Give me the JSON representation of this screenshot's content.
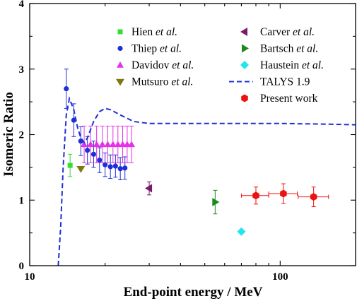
{
  "chart_data": {
    "type": "scatter",
    "title": "",
    "xlabel": "End-point energy / MeV",
    "ylabel": "Isomeric Ratio",
    "x_scale": "log",
    "xlim": [
      10,
      200
    ],
    "ylim": [
      0,
      4
    ],
    "x_ticks": [
      {
        "value": 10,
        "label": "10"
      },
      {
        "value": 100,
        "label": "100"
      }
    ],
    "y_ticks": [
      {
        "value": 0,
        "label": "0"
      },
      {
        "value": 1,
        "label": "1"
      },
      {
        "value": 2,
        "label": "2"
      },
      {
        "value": 3,
        "label": "3"
      },
      {
        "value": 4,
        "label": "4"
      }
    ],
    "grid": false,
    "legend_position": "top-right",
    "series": [
      {
        "name": "Hien",
        "name_suffix": " et al.",
        "marker": "square",
        "color": "#33dd33",
        "points": [
          {
            "x": 14.5,
            "y": 1.53,
            "yerr": 0.17
          }
        ]
      },
      {
        "name": "Thiep",
        "name_suffix": " et al.",
        "marker": "circle",
        "color": "#1f2fd6",
        "points": [
          {
            "x": 14.0,
            "y": 2.7,
            "yerr": 0.3
          },
          {
            "x": 15.0,
            "y": 2.22,
            "yerr": 0.25
          },
          {
            "x": 16.0,
            "y": 1.9,
            "yerr": 0.22
          },
          {
            "x": 17.0,
            "y": 1.76,
            "yerr": 0.21
          },
          {
            "x": 18.0,
            "y": 1.7,
            "yerr": 0.2
          },
          {
            "x": 19.0,
            "y": 1.61,
            "yerr": 0.19
          },
          {
            "x": 20.0,
            "y": 1.54,
            "yerr": 0.18
          },
          {
            "x": 21.0,
            "y": 1.51,
            "yerr": 0.18
          },
          {
            "x": 22.0,
            "y": 1.52,
            "yerr": 0.17
          },
          {
            "x": 23.0,
            "y": 1.48,
            "yerr": 0.17
          },
          {
            "x": 24.0,
            "y": 1.49,
            "yerr": 0.17
          }
        ]
      },
      {
        "name": "Davidov",
        "name_suffix": " et al.",
        "marker": "triangle-up",
        "color": "#e432e6",
        "points": [
          {
            "x": 16.5,
            "y": 1.85,
            "yerr": 0.28
          },
          {
            "x": 17.5,
            "y": 1.85,
            "yerr": 0.28
          },
          {
            "x": 18.5,
            "y": 1.85,
            "yerr": 0.28
          },
          {
            "x": 19.5,
            "y": 1.85,
            "yerr": 0.28
          },
          {
            "x": 20.5,
            "y": 1.85,
            "yerr": 0.28
          },
          {
            "x": 21.5,
            "y": 1.85,
            "yerr": 0.28
          },
          {
            "x": 22.5,
            "y": 1.85,
            "yerr": 0.28
          },
          {
            "x": 23.5,
            "y": 1.85,
            "yerr": 0.28
          },
          {
            "x": 24.5,
            "y": 1.85,
            "yerr": 0.28
          },
          {
            "x": 25.5,
            "y": 1.85,
            "yerr": 0.28
          }
        ]
      },
      {
        "name": "Mutsuro",
        "name_suffix": " et al.",
        "marker": "triangle-down",
        "color": "#7a7a10",
        "points": [
          {
            "x": 16.0,
            "y": 1.48,
            "yerr": 0
          }
        ]
      },
      {
        "name": "Carver",
        "name_suffix": " et al.",
        "marker": "triangle-left",
        "color": "#7b1a6a",
        "points": [
          {
            "x": 30.0,
            "y": 1.18,
            "yerr": 0.1
          }
        ]
      },
      {
        "name": "Bartsch",
        "name_suffix": " et al.",
        "marker": "triangle-right",
        "color": "#1a8a1a",
        "points": [
          {
            "x": 55.0,
            "y": 0.97,
            "yerr": 0.18
          }
        ]
      },
      {
        "name": "Haustein",
        "name_suffix": " et al.",
        "marker": "diamond",
        "color": "#22e5ee",
        "points": [
          {
            "x": 70.0,
            "y": 0.52,
            "yerr": 0
          }
        ]
      },
      {
        "name": "TALYS 1.9",
        "name_suffix": "",
        "marker": "dashed-line",
        "color": "#1f2fd6",
        "line": [
          {
            "x": 13.0,
            "y": 0.0
          },
          {
            "x": 13.3,
            "y": 0.6
          },
          {
            "x": 13.6,
            "y": 1.5
          },
          {
            "x": 14.0,
            "y": 2.3
          },
          {
            "x": 14.4,
            "y": 2.55
          },
          {
            "x": 15.0,
            "y": 2.38
          },
          {
            "x": 15.5,
            "y": 2.12
          },
          {
            "x": 16.0,
            "y": 1.95
          },
          {
            "x": 16.5,
            "y": 1.88
          },
          {
            "x": 17.0,
            "y": 1.95
          },
          {
            "x": 18.0,
            "y": 2.2
          },
          {
            "x": 19.0,
            "y": 2.35
          },
          {
            "x": 20.0,
            "y": 2.4
          },
          {
            "x": 21.0,
            "y": 2.38
          },
          {
            "x": 23.0,
            "y": 2.3
          },
          {
            "x": 26.0,
            "y": 2.2
          },
          {
            "x": 30.0,
            "y": 2.17
          },
          {
            "x": 40.0,
            "y": 2.17
          },
          {
            "x": 60.0,
            "y": 2.17
          },
          {
            "x": 80.0,
            "y": 2.17
          },
          {
            "x": 100.0,
            "y": 2.17
          },
          {
            "x": 150.0,
            "y": 2.16
          },
          {
            "x": 200.0,
            "y": 2.15
          }
        ]
      },
      {
        "name": "Present work",
        "name_suffix": "",
        "marker": "hexagon",
        "color": "#ee1111",
        "points": [
          {
            "x": 80.0,
            "y": 1.07,
            "yerr": 0.13,
            "xerr_low": 10,
            "xerr_high": 10
          },
          {
            "x": 103.0,
            "y": 1.1,
            "yerr": 0.15,
            "xerr_low": 13,
            "xerr_high": 14
          },
          {
            "x": 136.0,
            "y": 1.05,
            "yerr": 0.15,
            "xerr_low": 18,
            "xerr_high": 20
          }
        ]
      }
    ]
  }
}
